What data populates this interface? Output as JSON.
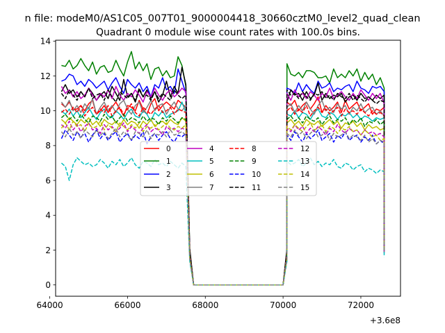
{
  "chart_data": {
    "type": "line",
    "suptitle": "n file: modeM0/AS1C05_007T01_9000004418_30660cztM0_level2_quad_clean",
    "title": "Quadrant 0 module wise count rates with 100.0s bins.",
    "xlabel": "",
    "ylabel": "",
    "x_offset_label": "+3.6e8",
    "xlim": [
      64150,
      73020
    ],
    "ylim": [
      -0.65,
      14.05
    ],
    "xticks": [
      64000,
      66000,
      68000,
      70000,
      72000
    ],
    "xtick_labels": [
      "64000",
      "66000",
      "68000",
      "70000",
      "72000"
    ],
    "yticks": [
      0,
      2,
      4,
      6,
      8,
      10,
      12,
      14
    ],
    "ytick_labels": [
      "0",
      "2",
      "4",
      "6",
      "8",
      "10",
      "12",
      "14"
    ],
    "grid": false,
    "legend": {
      "placement": "center",
      "ncol": 4
    },
    "series": [
      {
        "name": "0",
        "color": "#ff0000",
        "dash": "solid",
        "segA": [
          10.4,
          10.2,
          10.5,
          10.1,
          10.1,
          10.3,
          10.0,
          10.4,
          10.6,
          9.8,
          10.0,
          10.3,
          9.9,
          10.2,
          10.5,
          10.1,
          9.7,
          10.3,
          10.2,
          10.0,
          10.6,
          10.1,
          9.8,
          10.4,
          10.7,
          10.0,
          10.3,
          10.5,
          10.3,
          10.1,
          10.6,
          10.4,
          10.2
        ],
        "segB": [
          10.5,
          10.3,
          10.6,
          10.0,
          10.3,
          10.5,
          10.1,
          10.4,
          10.8,
          9.9,
          10.3,
          10.0,
          10.2,
          10.5,
          9.9,
          10.6,
          10.1,
          10.3,
          10.5,
          10.0,
          10.2,
          10.4,
          9.8,
          10.1,
          10.0,
          10.2
        ],
        "end": 2.4
      },
      {
        "name": "1",
        "color": "#008000",
        "dash": "solid",
        "segA": [
          12.6,
          12.55,
          12.9,
          12.4,
          12.6,
          13.0,
          12.6,
          12.3,
          12.8,
          12.1,
          12.5,
          12.6,
          12.2,
          12.3,
          12.9,
          12.4,
          12.0,
          12.8,
          13.4,
          12.4,
          12.8,
          12.3,
          12.7,
          11.8,
          12.4,
          12.5,
          12.0,
          12.3,
          11.9,
          12.0,
          13.1,
          12.6,
          11.4
        ],
        "segB": [
          12.7,
          12.1,
          12.0,
          12.2,
          11.9,
          12.3,
          12.3,
          12.2,
          11.9,
          11.9,
          12.0,
          11.6,
          12.4,
          11.9,
          12.1,
          11.9,
          12.3,
          12.0,
          12.4,
          11.7,
          12.2,
          11.8,
          12.1,
          11.5,
          11.9,
          11.3
        ],
        "end": 2.6
      },
      {
        "name": "2",
        "color": "#0000ff",
        "dash": "solid",
        "segA": [
          11.7,
          11.8,
          12.1,
          12.0,
          11.5,
          11.7,
          11.4,
          11.8,
          11.6,
          11.3,
          11.5,
          11.7,
          11.2,
          11.6,
          11.9,
          11.4,
          11.0,
          11.8,
          11.5,
          11.3,
          11.6,
          11.1,
          11.4,
          10.8,
          11.5,
          11.3,
          11.9,
          11.2,
          11.4,
          11.0,
          12.4,
          11.7,
          11.0
        ],
        "segB": [
          11.3,
          11.2,
          11.0,
          11.6,
          11.1,
          11.5,
          11.2,
          11.0,
          11.7,
          11.3,
          11.4,
          11.6,
          11.1,
          11.3,
          11.2,
          11.4,
          11.5,
          11.1,
          11.7,
          11.3,
          11.2,
          11.0,
          11.4,
          11.3,
          11.4,
          11.1
        ],
        "end": 2.2
      },
      {
        "name": "3",
        "color": "#000000",
        "dash": "solid",
        "segA": [
          11.1,
          11.5,
          11.0,
          11.2,
          10.8,
          11.1,
          10.8,
          11.3,
          11.0,
          10.6,
          10.9,
          11.1,
          10.7,
          11.4,
          11.0,
          10.6,
          11.8,
          10.8,
          11.0,
          10.5,
          11.2,
          10.8,
          11.2,
          10.7,
          11.1,
          10.5,
          10.9,
          11.7,
          10.8,
          11.4,
          11.0,
          12.5,
          11.5
        ],
        "segB": [
          10.5,
          11.2,
          10.9,
          11.0,
          10.6,
          11.1,
          10.7,
          10.9,
          11.6,
          10.6,
          11.0,
          10.7,
          10.9,
          10.8,
          11.0,
          10.5,
          10.8,
          10.9,
          10.6,
          11.0,
          10.7,
          10.8,
          10.6,
          10.9,
          10.7,
          10.9
        ],
        "end": 2.8
      },
      {
        "name": "4",
        "color": "#bf00bf",
        "dash": "solid",
        "segA": [
          11.4,
          11.0,
          11.2,
          10.8,
          11.1,
          10.7,
          10.9,
          11.3,
          10.9,
          10.6,
          11.0,
          10.8,
          11.2,
          10.7,
          11.4,
          10.9,
          10.6,
          11.0,
          10.8,
          11.2,
          10.9,
          10.5,
          11.1,
          10.8,
          11.3,
          10.9,
          10.6,
          11.0,
          11.2,
          10.8,
          11.0,
          11.3,
          11.1
        ],
        "segB": [
          11.0,
          10.6,
          11.2,
          10.8,
          11.0,
          10.7,
          11.1,
          10.9,
          10.6,
          11.0,
          10.8,
          11.3,
          10.7,
          10.9,
          11.1,
          10.8,
          10.6,
          11.0,
          10.7,
          11.2,
          10.9,
          10.6,
          11.0,
          10.7,
          11.0,
          10.4
        ],
        "end": 2.3
      },
      {
        "name": "5",
        "color": "#00bfbf",
        "dash": "solid",
        "segA": [
          10.0,
          9.8,
          10.1,
          9.7,
          10.0,
          9.6,
          9.9,
          10.2,
          9.8,
          9.5,
          9.9,
          10.1,
          9.7,
          9.6,
          10.0,
          9.8,
          9.5,
          9.9,
          10.1,
          9.7,
          9.6,
          10.0,
          9.8,
          9.4,
          9.9,
          9.7,
          10.0,
          9.6,
          9.8,
          9.9,
          10.0,
          10.5,
          9.9
        ],
        "segB": [
          9.8,
          9.7,
          10.0,
          9.6,
          9.9,
          9.8,
          9.5,
          9.9,
          10.1,
          9.7,
          9.6,
          9.9,
          9.8,
          9.5,
          9.8,
          9.7,
          9.9,
          9.6,
          9.8,
          9.5,
          9.7,
          9.6,
          9.4,
          9.6,
          9.5,
          9.6
        ],
        "end": 2.1
      },
      {
        "name": "6",
        "color": "#bfbf00",
        "dash": "solid",
        "segA": [
          9.5,
          9.3,
          9.6,
          9.4,
          9.2,
          9.5,
          9.3,
          9.6,
          9.2,
          9.4,
          9.1,
          9.5,
          9.3,
          9.2,
          9.4,
          9.1,
          9.5,
          9.2,
          9.4,
          9.3,
          9.0,
          9.4,
          9.2,
          9.5,
          9.1,
          9.3,
          9.4,
          9.2,
          9.5,
          9.3,
          9.2,
          9.6,
          9.4
        ],
        "segB": [
          9.3,
          9.5,
          9.2,
          9.4,
          9.1,
          9.5,
          9.3,
          9.2,
          9.4,
          9.1,
          9.3,
          9.5,
          9.2,
          9.4,
          9.0,
          9.3,
          9.2,
          9.4,
          9.1,
          9.3,
          8.9,
          9.2,
          9.0,
          9.1,
          8.9,
          9.0
        ],
        "end": 2.2
      },
      {
        "name": "7",
        "color": "#808080",
        "dash": "solid",
        "segA": [
          10.5,
          10.2,
          10.6,
          10.0,
          10.3,
          9.9,
          10.4,
          10.1,
          10.7,
          9.8,
          10.2,
          10.5,
          10.0,
          10.3,
          9.9,
          10.4,
          10.6,
          10.1,
          9.8,
          10.3,
          10.5,
          9.9,
          10.2,
          10.6,
          10.0,
          10.3,
          10.4,
          9.8,
          10.2,
          10.5,
          10.1,
          10.0,
          10.3
        ],
        "segB": [
          10.2,
          10.4,
          9.9,
          10.3,
          10.0,
          10.5,
          10.1,
          9.8,
          10.3,
          10.6,
          10.0,
          10.2,
          9.9,
          10.4,
          10.1,
          10.3,
          9.8,
          10.2,
          10.0,
          10.4,
          9.9,
          10.1,
          10.2,
          9.8,
          10.0,
          9.7
        ],
        "end": 2.0
      },
      {
        "name": "8",
        "color": "#ff0000",
        "dash": "dashed",
        "segA": [
          9.9,
          10.1,
          9.8,
          10.2,
          9.9,
          10.3,
          9.7,
          10.0,
          10.2,
          9.8,
          10.1,
          9.9,
          10.3,
          9.7,
          10.0,
          10.2,
          9.8,
          10.1,
          10.4,
          9.9,
          9.7,
          10.2,
          10.0,
          9.8,
          10.1,
          10.3,
          9.9,
          10.0,
          10.2,
          9.8,
          10.1,
          10.0,
          9.9
        ],
        "segB": [
          10.0,
          10.2,
          9.8,
          10.1,
          9.9,
          10.3,
          9.7,
          10.0,
          10.2,
          9.9,
          10.1,
          9.8,
          10.0,
          10.2,
          9.7,
          10.1,
          9.9,
          10.0,
          9.8,
          10.1,
          9.9,
          9.7,
          10.0,
          9.8,
          9.9,
          9.7
        ],
        "end": 2.1
      },
      {
        "name": "9",
        "color": "#008000",
        "dash": "dashed",
        "segA": [
          9.6,
          9.8,
          9.5,
          9.7,
          9.4,
          9.8,
          9.5,
          9.3,
          9.7,
          9.6,
          9.4,
          9.8,
          9.5,
          9.7,
          9.3,
          9.6,
          9.8,
          9.4,
          9.6,
          9.5,
          9.3,
          9.7,
          9.4,
          9.6,
          9.5,
          9.2,
          9.6,
          9.4,
          9.7,
          9.5,
          9.3,
          9.6,
          9.5
        ],
        "segB": [
          9.5,
          9.7,
          9.4,
          9.6,
          9.3,
          9.7,
          9.5,
          9.4,
          9.6,
          9.2,
          9.5,
          9.7,
          9.3,
          9.5,
          9.4,
          9.6,
          9.2,
          9.5,
          9.3,
          9.6,
          9.1,
          9.4,
          9.3,
          9.5,
          9.2,
          9.4
        ],
        "end": 2.0
      },
      {
        "name": "10",
        "color": "#0000ff",
        "dash": "dashed",
        "segA": [
          8.4,
          8.9,
          8.6,
          8.3,
          8.8,
          8.5,
          8.7,
          8.2,
          8.6,
          8.9,
          8.4,
          8.7,
          8.3,
          8.6,
          8.8,
          8.2,
          8.5,
          8.7,
          8.3,
          8.6,
          8.4,
          8.8,
          8.1,
          8.5,
          8.7,
          8.3,
          8.6,
          8.8,
          8.4,
          8.2,
          8.6,
          8.5,
          8.7
        ],
        "segB": [
          8.6,
          8.3,
          8.8,
          8.5,
          8.2,
          8.7,
          8.4,
          8.6,
          8.9,
          8.3,
          8.5,
          8.7,
          8.2,
          8.6,
          8.4,
          8.8,
          8.3,
          8.5,
          8.6,
          8.2,
          8.5,
          8.3,
          8.6,
          8.1,
          8.3,
          8.1
        ],
        "end": 1.9
      },
      {
        "name": "11",
        "color": "#000000",
        "dash": "dashed",
        "segA": [
          11.0,
          10.7,
          11.2,
          10.9,
          10.6,
          11.1,
          10.8,
          11.3,
          10.7,
          10.9,
          11.0,
          10.6,
          11.2,
          10.8,
          10.5,
          11.1,
          10.9,
          10.7,
          11.0,
          10.6,
          11.3,
          10.8,
          10.9,
          10.6,
          11.1,
          10.7,
          11.0,
          10.8,
          10.6,
          11.2,
          10.9,
          10.7,
          10.9
        ],
        "segB": [
          11.2,
          10.9,
          11.0,
          10.7,
          11.1,
          10.8,
          10.6,
          11.0,
          10.9,
          11.1,
          10.7,
          10.9,
          10.6,
          11.0,
          10.8,
          10.7,
          11.0,
          10.6,
          10.9,
          10.7,
          10.5,
          10.8,
          10.6,
          10.4,
          10.6,
          10.5
        ],
        "end": 2.4
      },
      {
        "name": "12",
        "color": "#bf00bf",
        "dash": "dashed",
        "segA": [
          9.2,
          9.0,
          9.4,
          8.9,
          9.2,
          8.8,
          9.1,
          9.3,
          8.9,
          9.0,
          8.7,
          9.2,
          8.9,
          9.1,
          8.8,
          9.0,
          9.3,
          8.8,
          9.1,
          8.9,
          8.7,
          9.0,
          9.2,
          8.8,
          9.0,
          8.9,
          8.6,
          9.1,
          8.9,
          9.0,
          8.8,
          9.0,
          8.9
        ],
        "segB": [
          9.0,
          8.8,
          9.2,
          8.9,
          9.1,
          8.7,
          9.0,
          8.8,
          9.1,
          8.9,
          8.6,
          9.0,
          8.8,
          9.2,
          8.9,
          8.7,
          9.0,
          8.8,
          8.9,
          8.6,
          8.9,
          8.7,
          8.8,
          8.6,
          8.7,
          8.5
        ],
        "end": 1.8
      },
      {
        "name": "13",
        "color": "#00bfbf",
        "dash": "dashed",
        "segA": [
          7.0,
          6.8,
          6.0,
          6.9,
          7.3,
          7.1,
          6.9,
          7.0,
          6.8,
          6.9,
          7.2,
          7.0,
          6.7,
          7.1,
          6.9,
          7.2,
          6.8,
          7.0,
          7.3,
          6.9,
          6.7,
          7.1,
          7.0,
          6.8,
          7.2,
          6.9,
          7.0,
          6.8,
          7.1,
          6.9,
          6.7,
          7.0,
          6.8
        ],
        "segB": [
          7.1,
          6.9,
          7.0,
          7.2,
          6.8,
          7.0,
          7.3,
          6.9,
          7.1,
          6.8,
          7.0,
          6.9,
          7.2,
          6.8,
          6.7,
          7.0,
          6.9,
          6.6,
          6.8,
          6.9,
          6.5,
          6.7,
          6.6,
          6.4,
          6.6,
          6.5
        ],
        "end": 1.6
      },
      {
        "name": "14",
        "color": "#bfbf00",
        "dash": "dashed",
        "segA": [
          9.0,
          9.3,
          8.9,
          9.4,
          9.1,
          9.2,
          8.8,
          9.3,
          9.0,
          9.1,
          9.4,
          8.9,
          9.2,
          9.0,
          8.8,
          9.3,
          9.1,
          8.9,
          9.2,
          9.0,
          9.3,
          8.8,
          9.1,
          9.0,
          9.2,
          8.9,
          9.1,
          9.3,
          9.0,
          8.9,
          9.1,
          9.0,
          9.2
        ],
        "segB": [
          9.1,
          8.9,
          9.2,
          9.0,
          8.8,
          9.1,
          9.3,
          8.9,
          9.0,
          9.2,
          8.8,
          9.1,
          9.0,
          8.7,
          9.0,
          8.9,
          9.1,
          8.8,
          8.9,
          8.6,
          8.9,
          8.7,
          8.5,
          8.6,
          8.3,
          8.4
        ],
        "end": 1.9
      },
      {
        "name": "15",
        "color": "#808080",
        "dash": "dashed",
        "segA": [
          8.8,
          8.5,
          9.0,
          8.6,
          8.8,
          8.4,
          8.9,
          8.7,
          8.5,
          8.9,
          8.6,
          8.8,
          8.4,
          8.7,
          9.0,
          8.5,
          8.8,
          8.6,
          8.3,
          8.8,
          8.7,
          8.5,
          8.9,
          8.4,
          8.7,
          8.6,
          8.8,
          8.5,
          8.9,
          8.6,
          8.7,
          8.8,
          8.6
        ],
        "segB": [
          8.7,
          8.5,
          8.9,
          8.6,
          8.8,
          8.4,
          8.7,
          8.9,
          8.5,
          8.6,
          8.8,
          8.3,
          8.7,
          8.5,
          8.6,
          8.8,
          8.4,
          8.6,
          8.5,
          8.3,
          8.6,
          8.2,
          8.4,
          8.1,
          8.3,
          8.2
        ],
        "end": 1.9
      }
    ]
  }
}
